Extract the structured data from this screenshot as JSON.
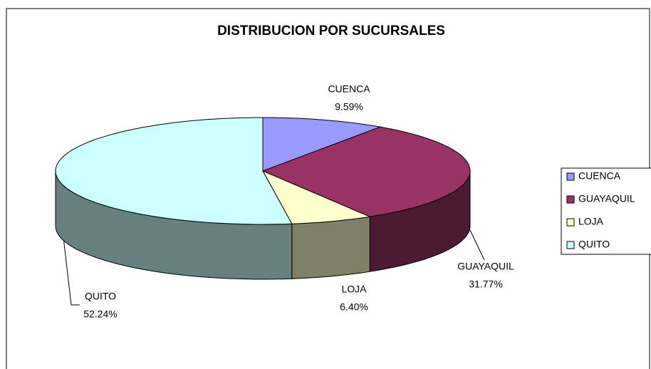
{
  "chart_data": {
    "type": "pie",
    "title": "DISTRIBUCION POR SUCURSALES",
    "categories": [
      "CUENCA",
      "GUAYAQUIL",
      "LOJA",
      "QUITO"
    ],
    "values": [
      9.59,
      31.77,
      6.4,
      52.24
    ],
    "value_labels": [
      "9.59%",
      "31.77%",
      "6.40%",
      "52.24%"
    ],
    "colors": [
      "#9999ff",
      "#993366",
      "#ffffcc",
      "#ccffff"
    ],
    "legend": "right"
  }
}
